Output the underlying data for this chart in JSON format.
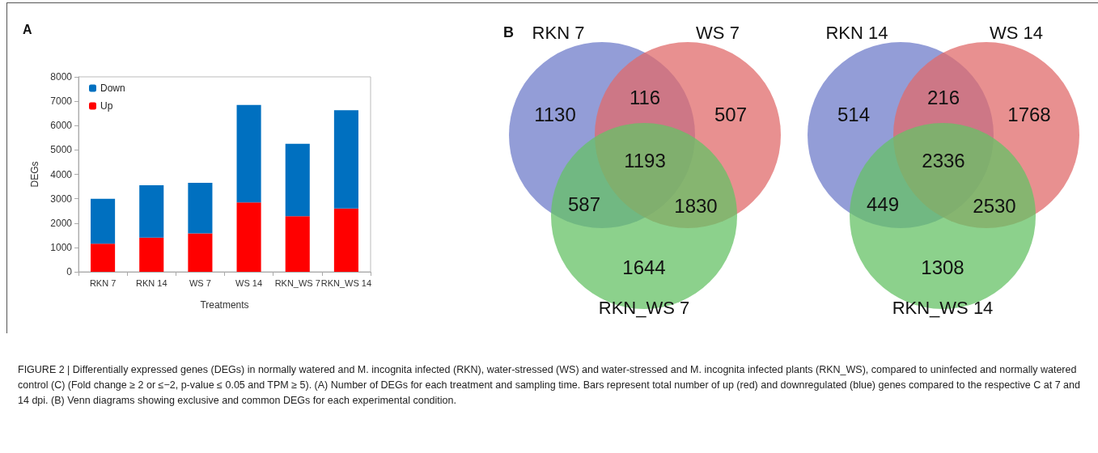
{
  "chart_data": [
    {
      "type": "bar",
      "stacked": true,
      "xlabel": "Treatments",
      "ylabel": "DEGs",
      "categories": [
        "RKN 7",
        "RKN 14",
        "WS 7",
        "WS 14",
        "RKN_WS 7",
        "RKN_WS 14"
      ],
      "series": [
        {
          "name": "Up",
          "color": "#ff0000",
          "values": [
            1150,
            1400,
            1580,
            2850,
            2280,
            2600
          ]
        },
        {
          "name": "Down",
          "color": "#0070c0",
          "values": [
            1850,
            2150,
            2070,
            4000,
            2970,
            4030
          ]
        }
      ],
      "ylim": [
        0,
        8000
      ],
      "yticks": [
        0,
        1000,
        2000,
        3000,
        4000,
        5000,
        6000,
        7000,
        8000
      ],
      "grid": false,
      "legend": "top left",
      "annotations": [
        "A",
        "FIGURE 2 | Differentially expressed genes (DEGs) in normally watered and M. incognita infected (RKN), water-stressed (WS) and water-stressed and M. incognita infected plants (RKN_WS), compared to uninfected and normally watered control (C) (Fold change ≥ 2 or ≤−2, p-value ≤ 0.05 and TPM ≥ 5). (A) Number of DEGs for each treatment and sampling time. Bars represent total number of up (red) and downregulated (blue) genes compared to the respective C at 7 and 14 dpi. (B) Venn diagrams showing exclusive and common DEGs for each experimental condition."
      ]
    },
    {
      "type": "other",
      "annotations": [
        "B",
        "RKN 7",
        "WS 7",
        "RKN_WS 7",
        "1130",
        "507",
        "1644",
        "116",
        "587",
        "1830",
        "1193"
      ]
    },
    {
      "type": "other",
      "annotations": [
        "RKN 14",
        "WS 14",
        "RKN_WS 14",
        "514",
        "1768",
        "1308",
        "216",
        "449",
        "2530",
        "2336"
      ]
    }
  ]
}
